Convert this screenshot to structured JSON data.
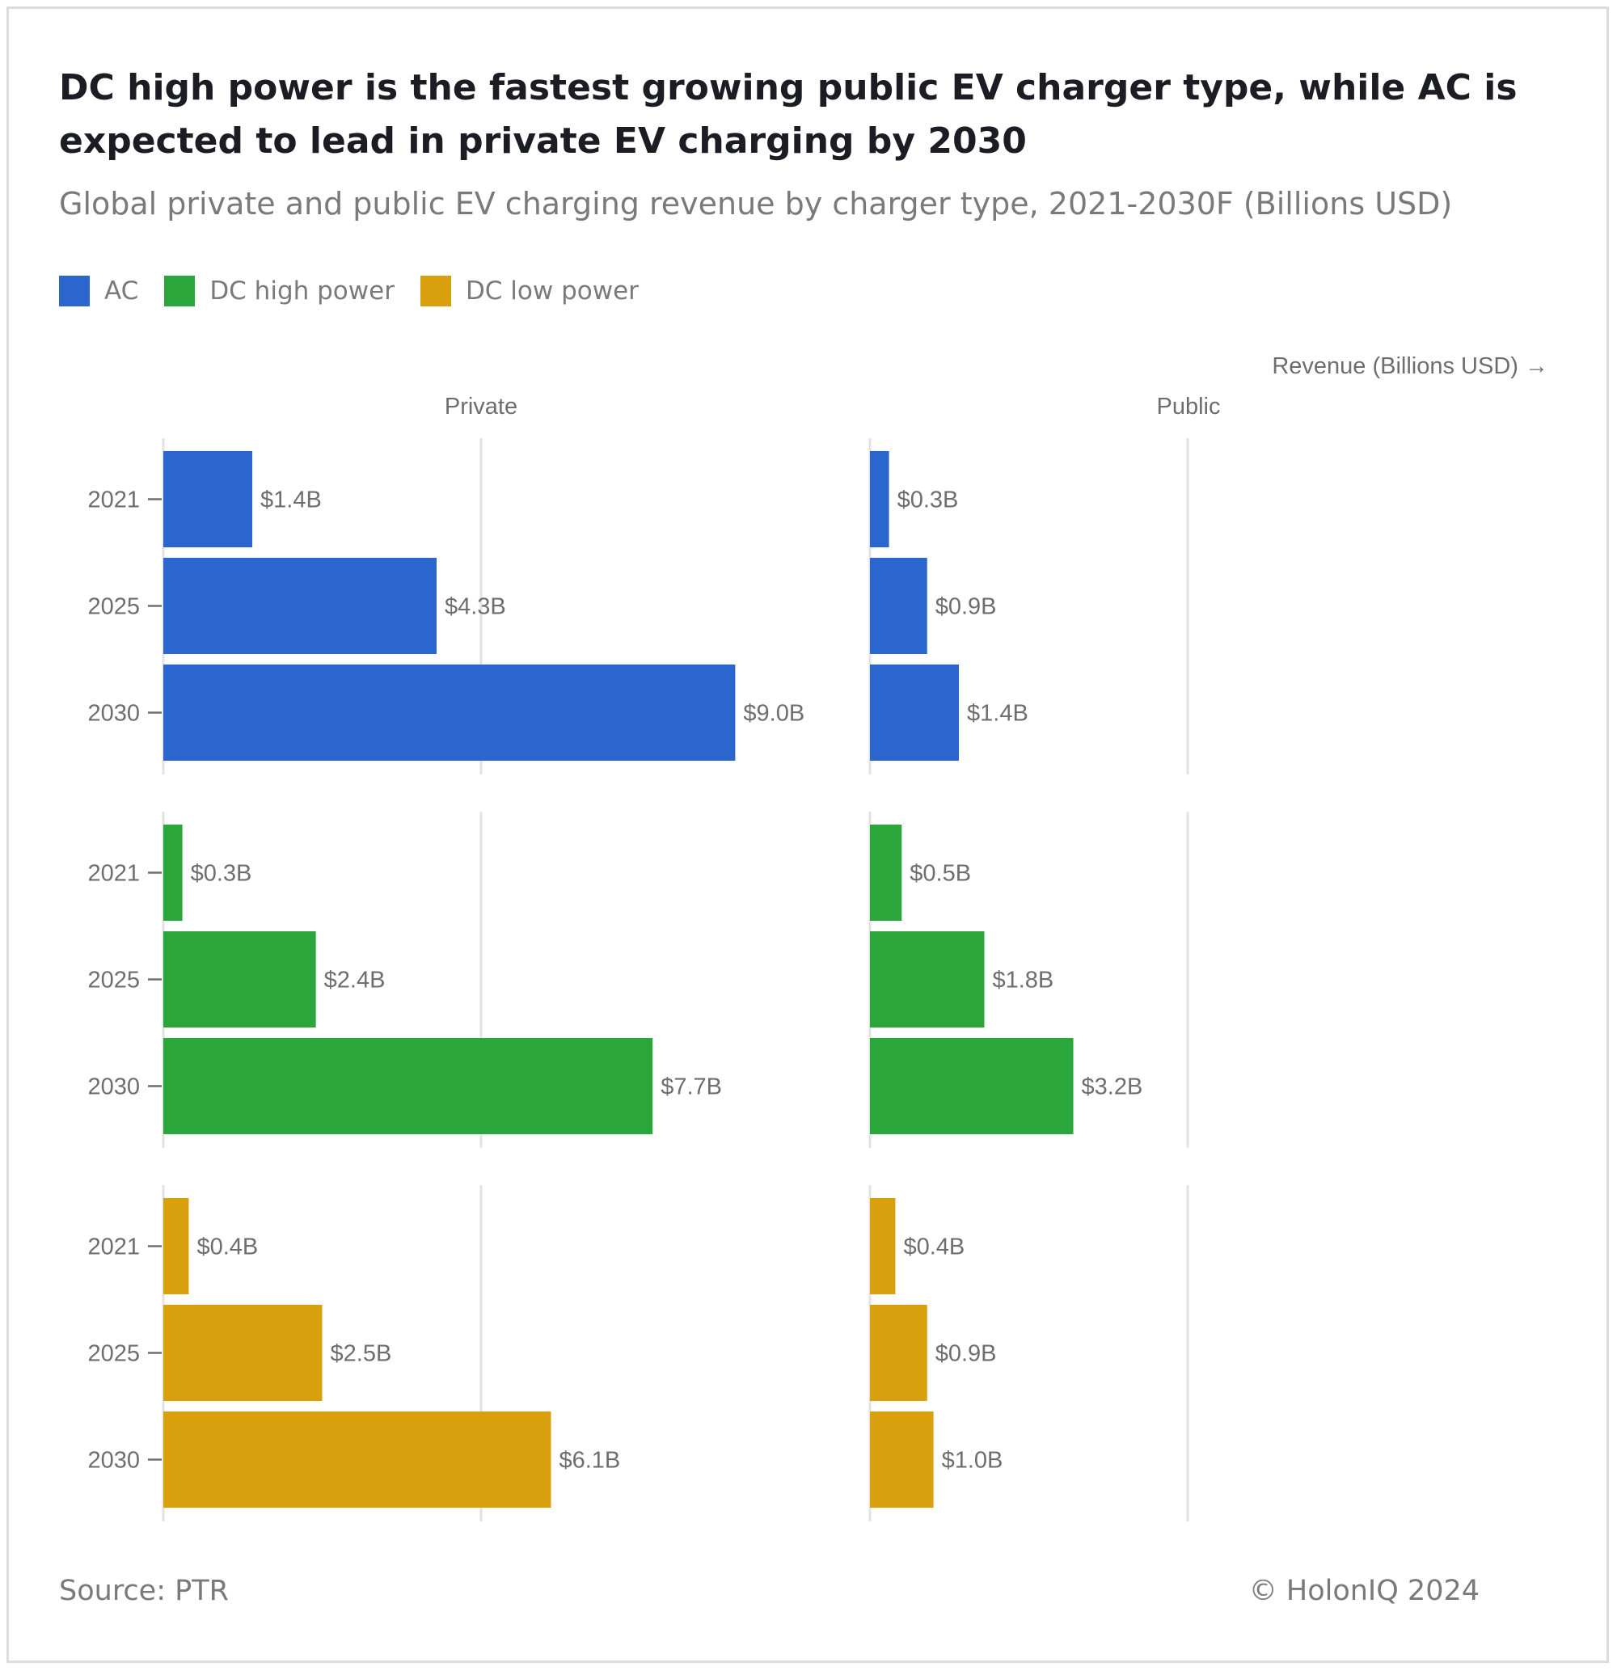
{
  "title": "DC high power is the fastest growing public EV charger type, while AC is expected to lead in private EV charging by 2030",
  "subtitle": "Global private and public EV charging revenue by charger type, 2021-2030F (Billions USD)",
  "legend": [
    {
      "label": "AC",
      "color": "#2a66cd"
    },
    {
      "label": "DC high power",
      "color": "#2aa63a"
    },
    {
      "label": "DC low power",
      "color": "#d8a00c"
    }
  ],
  "footer": {
    "source": "Source: PTR",
    "credit": "© HolonIQ 2024"
  },
  "chart_data": {
    "type": "bar",
    "orientation": "horizontal",
    "axis_label": "Revenue (Billions USD) →",
    "columns": [
      "Private",
      "Public"
    ],
    "categories": [
      "2021",
      "2025",
      "2030"
    ],
    "label_prefix": "$",
    "label_suffix": "B",
    "xlim": [
      0,
      10
    ],
    "grid": true,
    "facets": [
      {
        "series": "AC",
        "color": "#2a66cd",
        "private": [
          1.4,
          4.3,
          9.0
        ],
        "public": [
          0.3,
          0.9,
          1.4
        ]
      },
      {
        "series": "DC high power",
        "color": "#2aa63a",
        "private": [
          0.3,
          2.4,
          7.7
        ],
        "public": [
          0.5,
          1.8,
          3.2
        ]
      },
      {
        "series": "DC low power",
        "color": "#d8a00c",
        "private": [
          0.4,
          2.5,
          6.1
        ],
        "public": [
          0.4,
          0.9,
          1.0
        ]
      }
    ]
  }
}
